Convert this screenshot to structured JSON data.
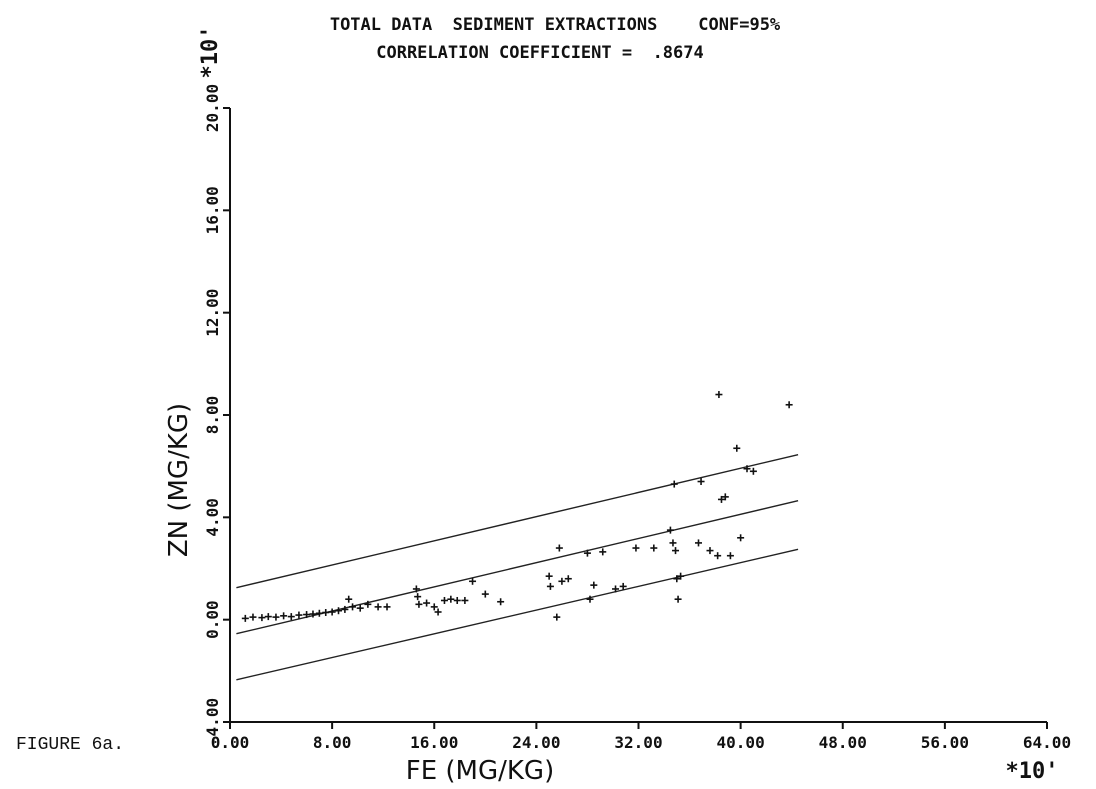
{
  "figure_label": "FIGURE 6a.",
  "chart_data": {
    "type": "scatter",
    "title": "TOTAL DATA  SEDIMENT EXTRACTIONS    CONF=95%",
    "subtitle": "CORRELATION COEFFICIENT =  .8674",
    "xlabel": "FE (MG/KG)",
    "ylabel": "ZN (MG/KG)",
    "x_multiplier": "*10'",
    "y_multiplier": "*10'",
    "xlim": [
      0,
      64
    ],
    "ylim": [
      -4,
      20
    ],
    "x_tick_labels": [
      "0.00",
      "8.00",
      "16.00",
      "24.00",
      "32.00",
      "40.00",
      "48.00",
      "56.00",
      "64.00"
    ],
    "y_tick_labels": [
      "-4.00",
      "0.00",
      "4.00",
      "8.00",
      "12.00",
      "16.00",
      "20.00"
    ],
    "grid": false,
    "lines": [
      {
        "x": [
          0.5,
          44.5
        ],
        "y": [
          1.25,
          6.45
        ]
      },
      {
        "x": [
          0.5,
          44.5
        ],
        "y": [
          -0.55,
          4.65
        ]
      },
      {
        "x": [
          0.5,
          44.5
        ],
        "y": [
          -2.35,
          2.75
        ]
      }
    ],
    "points": [
      [
        1.2,
        0.05
      ],
      [
        1.8,
        0.1
      ],
      [
        2.5,
        0.08
      ],
      [
        3.0,
        0.12
      ],
      [
        3.6,
        0.1
      ],
      [
        4.2,
        0.15
      ],
      [
        4.8,
        0.12
      ],
      [
        5.4,
        0.18
      ],
      [
        6.0,
        0.2
      ],
      [
        6.5,
        0.22
      ],
      [
        7.0,
        0.25
      ],
      [
        7.5,
        0.28
      ],
      [
        8.0,
        0.3
      ],
      [
        8.5,
        0.35
      ],
      [
        9.0,
        0.4
      ],
      [
        9.3,
        0.8
      ],
      [
        9.6,
        0.5
      ],
      [
        10.2,
        0.45
      ],
      [
        10.8,
        0.6
      ],
      [
        11.6,
        0.5
      ],
      [
        12.3,
        0.5
      ],
      [
        14.6,
        1.2
      ],
      [
        14.7,
        0.9
      ],
      [
        14.8,
        0.6
      ],
      [
        15.4,
        0.65
      ],
      [
        16.0,
        0.5
      ],
      [
        16.3,
        0.3
      ],
      [
        16.8,
        0.75
      ],
      [
        17.3,
        0.8
      ],
      [
        17.8,
        0.75
      ],
      [
        18.4,
        0.75
      ],
      [
        19.0,
        1.5
      ],
      [
        20.0,
        1.0
      ],
      [
        21.2,
        0.7
      ],
      [
        25.0,
        1.7
      ],
      [
        25.1,
        1.3
      ],
      [
        25.6,
        0.1
      ],
      [
        25.8,
        2.8
      ],
      [
        26.0,
        1.5
      ],
      [
        26.5,
        1.6
      ],
      [
        28.0,
        2.6
      ],
      [
        28.2,
        0.8
      ],
      [
        28.5,
        1.35
      ],
      [
        29.2,
        2.65
      ],
      [
        30.2,
        1.2
      ],
      [
        30.8,
        1.3
      ],
      [
        31.8,
        2.8
      ],
      [
        33.2,
        2.8
      ],
      [
        34.5,
        3.5
      ],
      [
        34.7,
        3.0
      ],
      [
        34.9,
        2.7
      ],
      [
        35.0,
        1.6
      ],
      [
        35.1,
        0.8
      ],
      [
        35.3,
        1.7
      ],
      [
        34.8,
        5.3
      ],
      [
        36.7,
        3.0
      ],
      [
        36.9,
        5.4
      ],
      [
        37.6,
        2.7
      ],
      [
        38.2,
        2.5
      ],
      [
        38.5,
        4.7
      ],
      [
        38.8,
        4.8
      ],
      [
        39.2,
        2.5
      ],
      [
        39.7,
        6.7
      ],
      [
        40.0,
        3.2
      ],
      [
        40.5,
        5.9
      ],
      [
        41.0,
        5.8
      ],
      [
        38.3,
        8.8
      ],
      [
        43.8,
        8.4
      ]
    ]
  }
}
